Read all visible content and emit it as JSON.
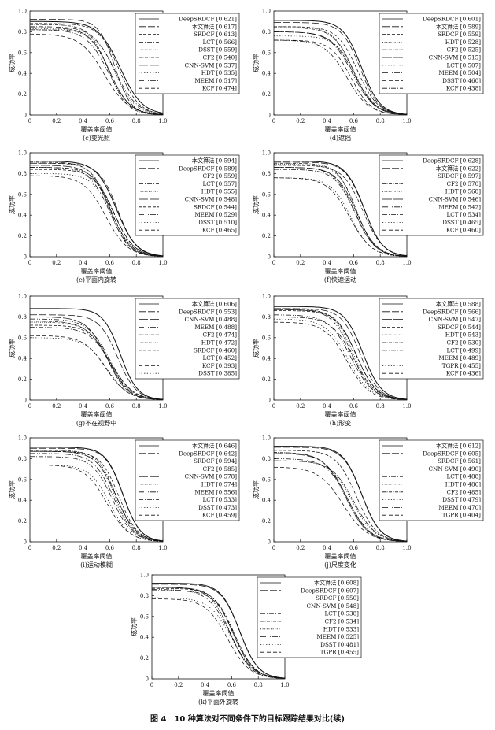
{
  "figure_caption": "图 4　10 种算法对不同条件下的目标跟踪结果对比(续)",
  "chart_data": [
    {
      "id": "c",
      "type": "line",
      "subtitle": "(c)变光照",
      "xlabel": "覆盖率阈值",
      "ylabel": "成功率",
      "xlim": [
        0,
        1
      ],
      "ylim": [
        0,
        1
      ],
      "xticks": [
        "0",
        "0.2",
        "0.4",
        "0.6",
        "0.8",
        "1.0"
      ],
      "yticks": [
        "0",
        "0.2",
        "0.4",
        "0.6",
        "0.8",
        "1.0"
      ],
      "legend_position": "top-right",
      "series": [
        {
          "name": "DeepSRDCF [0.621]",
          "style": "solid",
          "curve": [
            0.9,
            0.68,
            1.1
          ]
        },
        {
          "name": "本文算法 [0.617]",
          "style": "longdash",
          "curve": [
            0.92,
            0.64,
            1.5
          ]
        },
        {
          "name": "SRDCF [0.613]",
          "style": "dash",
          "curve": [
            0.88,
            0.67,
            1.2
          ]
        },
        {
          "name": "LCT [0.566]",
          "style": "dashdot",
          "curve": [
            0.85,
            0.64,
            1.1
          ]
        },
        {
          "name": "DSST [0.559]",
          "style": "dot",
          "curve": [
            0.82,
            0.64,
            1.2
          ]
        },
        {
          "name": "CF2 [0.540]",
          "style": "dashdot2",
          "curve": [
            0.87,
            0.59,
            1.3
          ]
        },
        {
          "name": "CNN-SVM [0.537]",
          "style": "longdash2",
          "curve": [
            0.84,
            0.6,
            1.2
          ]
        },
        {
          "name": "HDT [0.535]",
          "style": "dot2",
          "curve": [
            0.83,
            0.6,
            1.2
          ]
        },
        {
          "name": "MEEM [0.517]",
          "style": "dashdot3",
          "curve": [
            0.82,
            0.59,
            1.1
          ]
        },
        {
          "name": "KCF [0.474]",
          "style": "dash2",
          "curve": [
            0.78,
            0.56,
            1.0
          ]
        }
      ]
    },
    {
      "id": "d",
      "type": "line",
      "subtitle": "(d)遮挡",
      "xlabel": "覆盖率阈值",
      "ylabel": "成功率",
      "xlim": [
        0,
        1
      ],
      "ylim": [
        0,
        1
      ],
      "xticks": [
        "0",
        "0.2",
        "0.4",
        "0.6",
        "0.8",
        "1.0"
      ],
      "yticks": [
        "0",
        "0.2",
        "0.4",
        "0.6",
        "0.8",
        "1.0"
      ],
      "legend_position": "top-right",
      "series": [
        {
          "name": "DeepSRDCF [0.601]",
          "style": "solid",
          "curve": [
            0.91,
            0.66,
            1.3
          ]
        },
        {
          "name": "本文算法 [0.589]",
          "style": "longdash",
          "curve": [
            0.89,
            0.65,
            1.3
          ]
        },
        {
          "name": "SRDCF [0.559]",
          "style": "dash",
          "curve": [
            0.85,
            0.63,
            1.2
          ]
        },
        {
          "name": "HDT [0.528]",
          "style": "dot",
          "curve": [
            0.85,
            0.6,
            1.2
          ]
        },
        {
          "name": "CF2 [0.525]",
          "style": "dashdot2",
          "curve": [
            0.84,
            0.6,
            1.2
          ]
        },
        {
          "name": "CNN-SVM [0.515]",
          "style": "longdash2",
          "curve": [
            0.8,
            0.6,
            1.1
          ]
        },
        {
          "name": "LCT [0.507]",
          "style": "dot2",
          "curve": [
            0.76,
            0.62,
            1.2
          ]
        },
        {
          "name": "MEEM [0.504]",
          "style": "dashdot3",
          "curve": [
            0.8,
            0.59,
            1.1
          ]
        },
        {
          "name": "DSST [0.460]",
          "style": "dash2",
          "curve": [
            0.72,
            0.58,
            1.2
          ]
        },
        {
          "name": "KCF [0.438]",
          "style": "dashdot",
          "curve": [
            0.72,
            0.55,
            1.1
          ]
        }
      ]
    },
    {
      "id": "e",
      "type": "line",
      "subtitle": "(e)平面内旋转",
      "xlabel": "覆盖率阈值",
      "ylabel": "成功率",
      "xlim": [
        0,
        1
      ],
      "ylim": [
        0,
        1
      ],
      "xticks": [
        "0",
        "0.2",
        "0.4",
        "0.6",
        "0.8",
        "1.0"
      ],
      "yticks": [
        "0",
        "0.2",
        "0.4",
        "0.6",
        "0.8",
        "1.0"
      ],
      "legend_position": "top-right",
      "series": [
        {
          "name": "本文算法 [0.594]",
          "style": "solid",
          "curve": [
            0.92,
            0.65,
            1.2
          ]
        },
        {
          "name": "DeepSRDCF [0.589]",
          "style": "longdash",
          "curve": [
            0.9,
            0.66,
            1.3
          ]
        },
        {
          "name": "CF2 [0.559]",
          "style": "dashdot2",
          "curve": [
            0.91,
            0.6,
            1.3
          ]
        },
        {
          "name": "LCT [0.557]",
          "style": "dashdot",
          "curve": [
            0.86,
            0.63,
            1.2
          ]
        },
        {
          "name": "HDT [0.555]",
          "style": "dot",
          "curve": [
            0.9,
            0.61,
            1.3
          ]
        },
        {
          "name": "CNN-SVM [0.548]",
          "style": "longdash2",
          "curve": [
            0.88,
            0.61,
            1.2
          ]
        },
        {
          "name": "SRDCF [0.544]",
          "style": "dash",
          "curve": [
            0.84,
            0.63,
            1.2
          ]
        },
        {
          "name": "MEEM [0.529]",
          "style": "dashdot3",
          "curve": [
            0.86,
            0.6,
            1.2
          ]
        },
        {
          "name": "DSST [0.510]",
          "style": "dot2",
          "curve": [
            0.8,
            0.62,
            1.2
          ]
        },
        {
          "name": "KCF [0.465]",
          "style": "dash2",
          "curve": [
            0.78,
            0.57,
            1.1
          ]
        }
      ]
    },
    {
      "id": "f",
      "type": "line",
      "subtitle": "(f)快速运动",
      "xlabel": "覆盖率阈值",
      "ylabel": "成功率",
      "xlim": [
        0,
        1
      ],
      "ylim": [
        0,
        1
      ],
      "xticks": [
        "0",
        "0.2",
        "0.4",
        "0.6",
        "0.8",
        "1.0"
      ],
      "yticks": [
        "0",
        "0.2",
        "0.4",
        "0.6",
        "0.8",
        "1.0"
      ],
      "legend_position": "top-right",
      "series": [
        {
          "name": "DeepSRDCF [0.628]",
          "style": "solid",
          "curve": [
            0.92,
            0.68,
            1.3
          ]
        },
        {
          "name": "本文算法 [0.622]",
          "style": "longdash",
          "curve": [
            0.91,
            0.68,
            1.3
          ]
        },
        {
          "name": "SRDCF [0.597]",
          "style": "dash",
          "curve": [
            0.88,
            0.67,
            1.2
          ]
        },
        {
          "name": "CF2 [0.570]",
          "style": "dashdot2",
          "curve": [
            0.9,
            0.62,
            1.3
          ]
        },
        {
          "name": "HDT [0.568]",
          "style": "dot",
          "curve": [
            0.89,
            0.62,
            1.3
          ]
        },
        {
          "name": "CNN-SVM [0.546]",
          "style": "longdash2",
          "curve": [
            0.86,
            0.62,
            1.2
          ]
        },
        {
          "name": "MEEM [0.542]",
          "style": "dashdot3",
          "curve": [
            0.86,
            0.61,
            1.2
          ]
        },
        {
          "name": "LCT [0.534]",
          "style": "dashdot",
          "curve": [
            0.84,
            0.61,
            1.2
          ]
        },
        {
          "name": "DSST [0.465]",
          "style": "dot2",
          "curve": [
            0.76,
            0.58,
            1.2
          ]
        },
        {
          "name": "KCF [0.460]",
          "style": "dash2",
          "curve": [
            0.76,
            0.57,
            1.1
          ]
        }
      ]
    },
    {
      "id": "g",
      "type": "line",
      "subtitle": "(g)不在视野中",
      "xlabel": "覆盖率阈值",
      "ylabel": "成功率",
      "xlim": [
        0,
        1
      ],
      "ylim": [
        0,
        1
      ],
      "xticks": [
        "0",
        "0.2",
        "0.4",
        "0.6",
        "0.8",
        "1.0"
      ],
      "yticks": [
        "0",
        "0.2",
        "0.4",
        "0.6",
        "0.8",
        "1.0"
      ],
      "legend_position": "top-right",
      "series": [
        {
          "name": "本文算法 [0.606]",
          "style": "solid",
          "curve": [
            0.88,
            0.68,
            1.4
          ]
        },
        {
          "name": "DeepSRDCF [0.553]",
          "style": "longdash",
          "curve": [
            0.82,
            0.66,
            1.3
          ]
        },
        {
          "name": "CNN-SVM [0.488]",
          "style": "longdash2",
          "curve": [
            0.8,
            0.58,
            1.2
          ]
        },
        {
          "name": "MEEM [0.488]",
          "style": "dashdot3",
          "curve": [
            0.78,
            0.6,
            1.1
          ]
        },
        {
          "name": "CF2 [0.474]",
          "style": "dashdot2",
          "curve": [
            0.76,
            0.59,
            1.1
          ]
        },
        {
          "name": "HDT [0.472]",
          "style": "dot",
          "curve": [
            0.75,
            0.6,
            1.1
          ]
        },
        {
          "name": "SRDCF [0.460]",
          "style": "dash",
          "curve": [
            0.72,
            0.6,
            1.2
          ]
        },
        {
          "name": "LCT [0.452]",
          "style": "dashdot",
          "curve": [
            0.7,
            0.61,
            1.1
          ]
        },
        {
          "name": "KCF [0.393]",
          "style": "dash2",
          "curve": [
            0.62,
            0.57,
            1.1
          ]
        },
        {
          "name": "DSST [0.385]",
          "style": "dot2",
          "curve": [
            0.6,
            0.58,
            1.1
          ]
        }
      ]
    },
    {
      "id": "h",
      "type": "line",
      "subtitle": "(h)形变",
      "xlabel": "覆盖率阈值",
      "ylabel": "成功率",
      "xlim": [
        0,
        1
      ],
      "ylim": [
        0,
        1
      ],
      "xticks": [
        "0",
        "0.2",
        "0.4",
        "0.6",
        "0.8",
        "1.0"
      ],
      "yticks": [
        "0",
        "0.2",
        "0.4",
        "0.6",
        "0.8",
        "1.0"
      ],
      "legend_position": "top-right",
      "series": [
        {
          "name": "本文算法 [0.588]",
          "style": "solid",
          "curve": [
            0.9,
            0.67,
            1.3
          ]
        },
        {
          "name": "DeepSRDCF [0.566]",
          "style": "longdash",
          "curve": [
            0.88,
            0.65,
            1.3
          ]
        },
        {
          "name": "CNN-SVM [0.547]",
          "style": "longdash2",
          "curve": [
            0.87,
            0.62,
            1.2
          ]
        },
        {
          "name": "SRDCF [0.544]",
          "style": "dash",
          "curve": [
            0.86,
            0.62,
            1.2
          ]
        },
        {
          "name": "HDT [0.543]",
          "style": "dot",
          "curve": [
            0.88,
            0.6,
            1.2
          ]
        },
        {
          "name": "CF2 [0.530]",
          "style": "dashdot2",
          "curve": [
            0.87,
            0.59,
            1.2
          ]
        },
        {
          "name": "LCT [0.499]",
          "style": "dashdot",
          "curve": [
            0.8,
            0.6,
            1.1
          ]
        },
        {
          "name": "MEEM [0.489]",
          "style": "dashdot3",
          "curve": [
            0.82,
            0.58,
            1.1
          ]
        },
        {
          "name": "TGPR [0.455]",
          "style": "dot2",
          "curve": [
            0.78,
            0.56,
            1.1
          ]
        },
        {
          "name": "KCF [0.436]",
          "style": "dash2",
          "curve": [
            0.75,
            0.55,
            1.1
          ]
        }
      ]
    },
    {
      "id": "i",
      "type": "line",
      "subtitle": "(i)运动模糊",
      "xlabel": "覆盖率阈值",
      "ylabel": "成功率",
      "xlim": [
        0,
        1
      ],
      "ylim": [
        0,
        1
      ],
      "xticks": [
        "0",
        "0.2",
        "0.4",
        "0.6",
        "0.8",
        "1.0"
      ],
      "yticks": [
        "0",
        "0.2",
        "0.4",
        "0.6",
        "0.8",
        "1.0"
      ],
      "legend_position": "top-right",
      "series": [
        {
          "name": "本文算法 [0.646]",
          "style": "solid",
          "curve": [
            0.91,
            0.7,
            1.4
          ]
        },
        {
          "name": "DeepSRDCF [0.642]",
          "style": "longdash",
          "curve": [
            0.9,
            0.7,
            1.4
          ]
        },
        {
          "name": "SRDCF [0.594]",
          "style": "dash",
          "curve": [
            0.87,
            0.67,
            1.3
          ]
        },
        {
          "name": "CF2 [0.585]",
          "style": "dashdot2",
          "curve": [
            0.88,
            0.65,
            1.3
          ]
        },
        {
          "name": "CNN-SVM [0.578]",
          "style": "longdash2",
          "curve": [
            0.87,
            0.65,
            1.2
          ]
        },
        {
          "name": "HDT [0.574]",
          "style": "dot",
          "curve": [
            0.87,
            0.64,
            1.3
          ]
        },
        {
          "name": "MEEM [0.556]",
          "style": "dashdot3",
          "curve": [
            0.85,
            0.63,
            1.2
          ]
        },
        {
          "name": "LCT [0.533]",
          "style": "dashdot",
          "curve": [
            0.82,
            0.62,
            1.2
          ]
        },
        {
          "name": "DSST [0.473]",
          "style": "dot2",
          "curve": [
            0.74,
            0.6,
            1.2
          ]
        },
        {
          "name": "KCF [0.459]",
          "style": "dash2",
          "curve": [
            0.74,
            0.58,
            1.1
          ]
        }
      ]
    },
    {
      "id": "j",
      "type": "line",
      "subtitle": "(j)尺度变化",
      "xlabel": "覆盖率阈值",
      "ylabel": "成功率",
      "xlim": [
        0,
        1
      ],
      "ylim": [
        0,
        1
      ],
      "xticks": [
        "0",
        "0.2",
        "0.4",
        "0.6",
        "0.8",
        "1.0"
      ],
      "yticks": [
        "0",
        "0.2",
        "0.4",
        "0.6",
        "0.8",
        "1.0"
      ],
      "legend_position": "top-right",
      "series": [
        {
          "name": "本文算法 [0.612]",
          "style": "solid",
          "curve": [
            0.92,
            0.66,
            1.3
          ]
        },
        {
          "name": "DeepSRDCF [0.605]",
          "style": "longdash",
          "curve": [
            0.91,
            0.66,
            1.3
          ]
        },
        {
          "name": "SRDCF [0.561]",
          "style": "dash",
          "curve": [
            0.88,
            0.62,
            1.2
          ]
        },
        {
          "name": "CNN-SVM [0.490]",
          "style": "longdash2",
          "curve": [
            0.85,
            0.55,
            1.1
          ]
        },
        {
          "name": "LCT [0.488]",
          "style": "dashdot",
          "curve": [
            0.78,
            0.6,
            1.1
          ]
        },
        {
          "name": "HDT [0.486]",
          "style": "dot",
          "curve": [
            0.86,
            0.54,
            1.1
          ]
        },
        {
          "name": "CF2 [0.485]",
          "style": "dashdot2",
          "curve": [
            0.86,
            0.54,
            1.1
          ]
        },
        {
          "name": "DSST [0.479]",
          "style": "dot2",
          "curve": [
            0.78,
            0.59,
            1.1
          ]
        },
        {
          "name": "MEEM [0.470]",
          "style": "dashdot3",
          "curve": [
            0.8,
            0.56,
            1.1
          ]
        },
        {
          "name": "TGPR [0.404]",
          "style": "dash2",
          "curve": [
            0.72,
            0.52,
            1.0
          ]
        }
      ]
    },
    {
      "id": "k",
      "type": "line",
      "subtitle": "(k)平面外旋转",
      "xlabel": "覆盖率阈值",
      "ylabel": "成功率",
      "xlim": [
        0,
        1
      ],
      "ylim": [
        0,
        1
      ],
      "xticks": [
        "0",
        "0.2",
        "0.4",
        "0.6",
        "0.8",
        "1.0"
      ],
      "yticks": [
        "0",
        "0.2",
        "0.4",
        "0.6",
        "0.8",
        "1.0"
      ],
      "legend_position": "top-right",
      "series": [
        {
          "name": "本文算法 [0.608]",
          "style": "solid",
          "curve": [
            0.92,
            0.66,
            1.3
          ]
        },
        {
          "name": "DeepSRDCF [0.607]",
          "style": "longdash",
          "curve": [
            0.91,
            0.66,
            1.3
          ]
        },
        {
          "name": "SRDCF [0.550]",
          "style": "dash",
          "curve": [
            0.87,
            0.62,
            1.2
          ]
        },
        {
          "name": "CNN-SVM [0.548]",
          "style": "longdash2",
          "curve": [
            0.88,
            0.61,
            1.2
          ]
        },
        {
          "name": "LCT [0.538]",
          "style": "dashdot",
          "curve": [
            0.85,
            0.62,
            1.2
          ]
        },
        {
          "name": "CF2 [0.534]",
          "style": "dashdot2",
          "curve": [
            0.88,
            0.59,
            1.2
          ]
        },
        {
          "name": "HDT [0.533]",
          "style": "dot",
          "curve": [
            0.88,
            0.59,
            1.2
          ]
        },
        {
          "name": "MEEM [0.525]",
          "style": "dashdot3",
          "curve": [
            0.86,
            0.59,
            1.1
          ]
        },
        {
          "name": "DSST [0.481]",
          "style": "dot2",
          "curve": [
            0.78,
            0.6,
            1.1
          ]
        },
        {
          "name": "TGPR [0.455]",
          "style": "dash2",
          "curve": [
            0.77,
            0.57,
            1.1
          ]
        }
      ]
    }
  ]
}
